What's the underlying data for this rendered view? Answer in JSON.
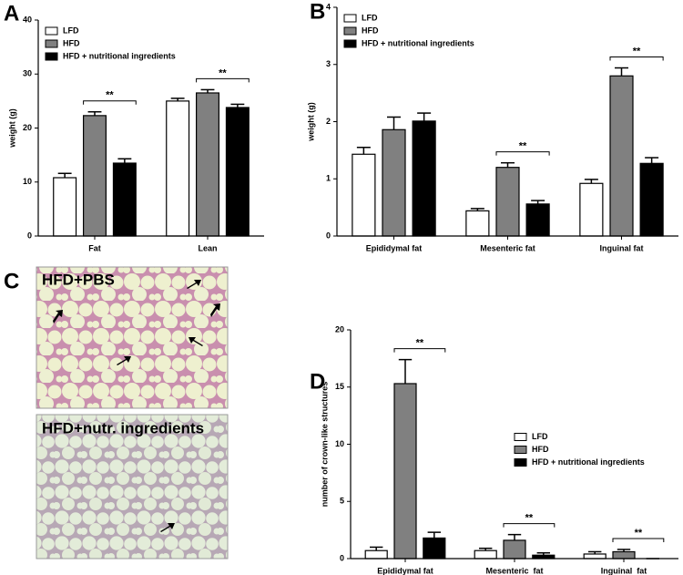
{
  "chart_data": [
    {
      "type": "bar",
      "panel": "A",
      "ylabel": "weight (g)",
      "categories": [
        "Fat",
        "Lean"
      ],
      "ylim": [
        0,
        40
      ],
      "yticks": [
        0,
        10,
        20,
        30,
        40
      ],
      "legend": "upper left",
      "series": [
        {
          "name": "LFD",
          "color": "#ffffff",
          "values": [
            10.8,
            25.0
          ],
          "errors": [
            0.8,
            0.5
          ]
        },
        {
          "name": "HFD",
          "color": "#808080",
          "values": [
            22.3,
            26.5
          ],
          "errors": [
            0.7,
            0.6
          ]
        },
        {
          "name": "HFD + nutritional ingredients",
          "color": "#000000",
          "values": [
            13.5,
            23.8
          ],
          "errors": [
            0.8,
            0.6
          ]
        }
      ],
      "annotations": [
        {
          "text": "**",
          "category": "Fat",
          "between": [
            "HFD",
            "HFD + nutritional ingredients"
          ]
        },
        {
          "text": "**",
          "category": "Lean",
          "between": [
            "HFD",
            "HFD + nutritional ingredients"
          ]
        }
      ]
    },
    {
      "type": "bar",
      "panel": "B",
      "ylabel": "weight (g)",
      "categories": [
        "Epididymal fat",
        "Mesenteric fat",
        "Inguinal fat"
      ],
      "ylim": [
        0,
        4
      ],
      "yticks": [
        0,
        1,
        2,
        3,
        4
      ],
      "legend": "upper left",
      "series": [
        {
          "name": "LFD",
          "color": "#ffffff",
          "values": [
            1.43,
            0.44,
            0.92
          ],
          "errors": [
            0.12,
            0.04,
            0.07
          ]
        },
        {
          "name": "HFD",
          "color": "#808080",
          "values": [
            1.86,
            1.2,
            2.8
          ],
          "errors": [
            0.22,
            0.08,
            0.14
          ]
        },
        {
          "name": "HFD + nutritional ingredients",
          "color": "#000000",
          "values": [
            2.01,
            0.56,
            1.27
          ],
          "errors": [
            0.14,
            0.06,
            0.1
          ]
        }
      ],
      "annotations": [
        {
          "text": "**",
          "category": "Mesenteric fat",
          "between": [
            "HFD",
            "HFD + nutritional ingredients"
          ]
        },
        {
          "text": "**",
          "category": "Inguinal fat",
          "between": [
            "HFD",
            "HFD + nutritional ingredients"
          ]
        }
      ]
    },
    {
      "type": "bar",
      "panel": "D",
      "ylabel": "number of crown-like structures",
      "categories": [
        "Epididymal fat",
        "Mesenteric  fat",
        "Inguinal  fat"
      ],
      "ylim": [
        0,
        20
      ],
      "yticks": [
        0,
        5,
        10,
        15,
        20
      ],
      "legend": "center right",
      "series": [
        {
          "name": "LFD",
          "color": "#ffffff",
          "values": [
            0.7,
            0.7,
            0.4
          ],
          "errors": [
            0.3,
            0.2,
            0.2
          ]
        },
        {
          "name": "HFD",
          "color": "#808080",
          "values": [
            15.3,
            1.6,
            0.6
          ],
          "errors": [
            2.1,
            0.5,
            0.2
          ]
        },
        {
          "name": "HFD + nutritional ingredients",
          "color": "#000000",
          "values": [
            1.8,
            0.3,
            0
          ],
          "errors": [
            0.5,
            0.2,
            0
          ]
        }
      ],
      "annotations": [
        {
          "text": "**",
          "category": "Epididymal fat",
          "between": [
            "HFD",
            "HFD + nutritional ingredients"
          ]
        },
        {
          "text": "**",
          "category": "Mesenteric  fat",
          "between": [
            "HFD",
            "HFD + nutritional ingredients"
          ]
        },
        {
          "text": "**",
          "category": "Inguinal  fat",
          "between": [
            "HFD",
            "HFD + nutritional ingredients"
          ]
        }
      ]
    }
  ],
  "panel_c": {
    "panel": "C",
    "images": [
      {
        "label": "HFD+PBS"
      },
      {
        "label": "HFD+nutr. ingredients"
      }
    ]
  }
}
